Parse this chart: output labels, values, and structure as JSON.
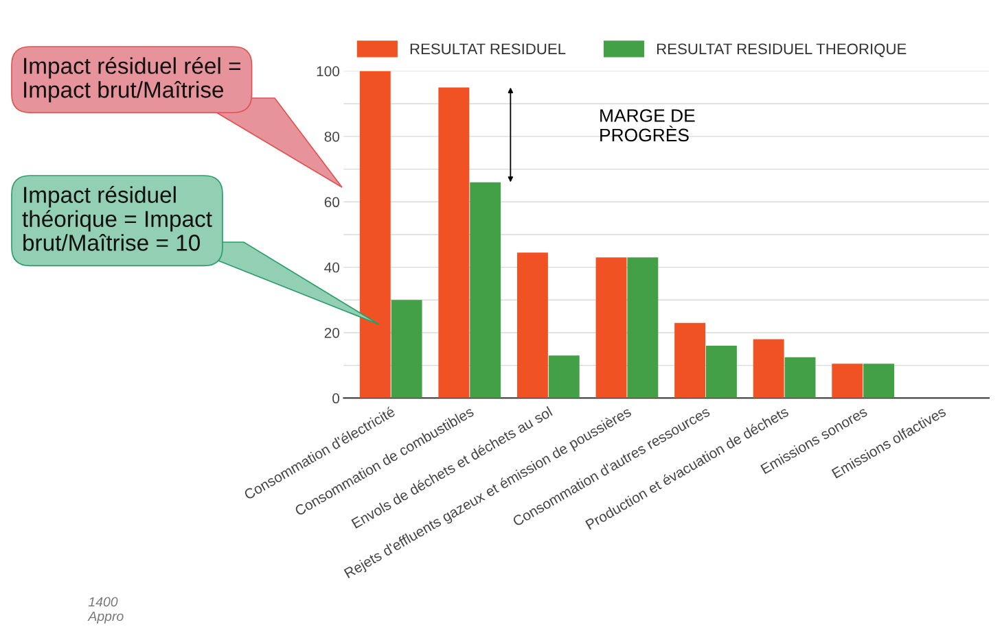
{
  "chart_data": {
    "type": "bar",
    "categories": [
      "Consommation d'électricité",
      "Consommation de combustibles",
      "Envols de déchets et déchets au sol",
      "Rejets d'effluents gazeux et émission de poussières",
      "Consommation d'autres ressources",
      "Production et évacuation de déchets",
      "Emissions sonores",
      "Emissions olfactives"
    ],
    "series": [
      {
        "name": "RESULTAT RESIDUEL",
        "color": "#f05223",
        "values": [
          100,
          95,
          44.5,
          43,
          23,
          18,
          10.5,
          null
        ]
      },
      {
        "name": "RESULTAT RESIDUEL THEORIQUE",
        "color": "#43a047",
        "values": [
          30,
          66,
          13,
          43,
          16,
          12.5,
          10.5,
          null
        ]
      }
    ],
    "ylim": [
      0,
      100
    ],
    "yticks": [
      0,
      {
        "value": 10,
        "label": null
      },
      20,
      {
        "value": 30,
        "label": null
      },
      40,
      {
        "value": 50,
        "label": null
      },
      60,
      {
        "value": 70,
        "label": null
      },
      80,
      {
        "value": 90,
        "label": null
      },
      100
    ],
    "grid": "y",
    "legend": "top",
    "annotations": [
      "Impact résiduel réel =\nImpact brut/Maîtrise",
      "Impact résiduel\nthéorique = Impact\nbrut/Maîtrise = 10",
      "MARGE DE\nPROGRÈS",
      "1400\nAppro"
    ]
  }
}
